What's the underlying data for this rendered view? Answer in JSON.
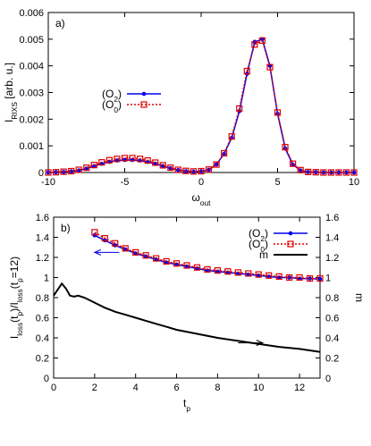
{
  "chart_data": [
    {
      "type": "line",
      "panel_label": "a)",
      "xlabel_base": "ω",
      "xlabel_sub": "out",
      "ylabel_base": "I",
      "ylabel_sub": "RIXS",
      "ylabel_suffix": " [arb. u.]",
      "xlim": [
        -10,
        10
      ],
      "ylim": [
        0,
        0.006
      ],
      "xticks": [
        "-10",
        "-5",
        "0",
        "5",
        "10"
      ],
      "yticks": [
        "0",
        "0.001",
        "0.002",
        "0.003",
        "0.004",
        "0.005",
        "0.006"
      ],
      "grid": false,
      "legend_position": "center-left",
      "series": [
        {
          "name": "(O2)",
          "name_base": "(O",
          "name_sub": "2",
          "name_tail": ")",
          "color": "#0000ee",
          "style": "solid",
          "marker": "circle",
          "x": [
            -10,
            -9.5,
            -9,
            -8.5,
            -8,
            -7.5,
            -7,
            -6.5,
            -6,
            -5.5,
            -5,
            -4.5,
            -4,
            -3.5,
            -3,
            -2.5,
            -2,
            -1.5,
            -1,
            -0.5,
            0,
            0.5,
            1,
            1.5,
            2,
            2.5,
            3,
            3.5,
            4,
            4.5,
            5,
            5.5,
            6,
            6.5,
            7,
            7.5,
            8,
            8.5,
            9,
            9.5,
            10
          ],
          "y": [
            0,
            1e-05,
            2e-05,
            4e-05,
            8e-05,
            0.00015,
            0.00024,
            0.00033,
            0.0004,
            0.00045,
            0.00047,
            0.00047,
            0.00045,
            0.0004,
            0.00033,
            0.00024,
            0.00016,
            9e-05,
            5e-05,
            3e-05,
            4e-05,
            0.0001,
            0.0003,
            0.0007,
            0.0013,
            0.0023,
            0.0037,
            0.0049,
            0.005,
            0.004,
            0.0022,
            0.0009,
            0.0003,
            8e-05,
            2e-05,
            1e-05,
            0,
            0,
            0,
            0,
            0
          ]
        },
        {
          "name": "(O0)",
          "name_base": "(O",
          "name_sub": "0",
          "name_tail": ")",
          "color": "#e00000",
          "style": "dotted",
          "marker": "square",
          "x": [
            -10,
            -9.5,
            -9,
            -8.5,
            -8,
            -7.5,
            -7,
            -6.5,
            -6,
            -5.5,
            -5,
            -4.5,
            -4,
            -3.5,
            -3,
            -2.5,
            -2,
            -1.5,
            -1,
            -0.5,
            0,
            0.5,
            1,
            1.5,
            2,
            2.5,
            3,
            3.5,
            4,
            4.5,
            5,
            5.5,
            6,
            6.5,
            7,
            7.5,
            8,
            8.5,
            9,
            9.5,
            10
          ],
          "y": [
            0,
            1e-05,
            3e-05,
            5e-05,
            0.0001,
            0.00018,
            0.00028,
            0.00038,
            0.00046,
            0.00051,
            0.00054,
            0.00054,
            0.00051,
            0.00045,
            0.00037,
            0.00027,
            0.00018,
            0.0001,
            6e-05,
            4e-05,
            5e-05,
            0.00011,
            0.0003,
            0.00072,
            0.00135,
            0.0024,
            0.0038,
            0.0048,
            0.00495,
            0.00395,
            0.00225,
            0.00095,
            0.00033,
            9e-05,
            2e-05,
            1e-05,
            0,
            0,
            0,
            0,
            0
          ]
        }
      ]
    },
    {
      "type": "line",
      "panel_label": "b)",
      "xlabel_base": "t",
      "xlabel_sub": "p",
      "ylabel_text": "I_loss(t_p)/I_loss(t_p=12)",
      "ylabel_parts": [
        {
          "t": "I",
          "sub": false
        },
        {
          "t": "loss",
          "sub": true
        },
        {
          "t": "(t",
          "sub": false
        },
        {
          "t": "p",
          "sub": true
        },
        {
          "t": ")/I",
          "sub": false
        },
        {
          "t": "loss",
          "sub": true
        },
        {
          "t": "(t",
          "sub": false
        },
        {
          "t": "p",
          "sub": true
        },
        {
          "t": "=12)",
          "sub": false
        }
      ],
      "y2label": "m",
      "xlim": [
        0,
        13
      ],
      "ylim": [
        0,
        1.6
      ],
      "y2lim": [
        0,
        1.6
      ],
      "xticks": [
        "0",
        "2",
        "4",
        "6",
        "8",
        "10",
        "12"
      ],
      "yticks": [
        "0",
        "0.2",
        "0.4",
        "0.6",
        "0.8",
        "1",
        "1.2",
        "1.4",
        "1.6"
      ],
      "y2ticks": [
        "0",
        "0.2",
        "0.4",
        "0.6",
        "0.8",
        "1",
        "1.2",
        "1.4",
        "1.6"
      ],
      "grid": false,
      "legend_position": "top-right",
      "annotations": [
        {
          "type": "arrow",
          "direction": "left",
          "from": [
            3.2,
            1.25
          ],
          "to": [
            2.0,
            1.25
          ],
          "axis": "left",
          "color": "#0000ee"
        },
        {
          "type": "arrow",
          "direction": "right",
          "from": [
            9.0,
            0.35
          ],
          "to": [
            10.2,
            0.35
          ],
          "axis": "right",
          "color": "#000000"
        }
      ],
      "series": [
        {
          "name": "(O2)",
          "name_base": "(O",
          "name_sub": "2",
          "name_tail": ")",
          "color": "#0000ee",
          "style": "solid",
          "marker": "circle",
          "axis": "left",
          "x": [
            2,
            2.5,
            3,
            3.5,
            4,
            4.5,
            5,
            5.5,
            6,
            6.5,
            7,
            7.5,
            8,
            8.5,
            9,
            9.5,
            10,
            10.5,
            11,
            11.5,
            12,
            12.5,
            13
          ],
          "y": [
            1.42,
            1.37,
            1.32,
            1.28,
            1.24,
            1.21,
            1.18,
            1.15,
            1.13,
            1.11,
            1.09,
            1.07,
            1.06,
            1.05,
            1.04,
            1.03,
            1.02,
            1.01,
            1.0,
            1.0,
            0.99,
            0.99,
            0.985
          ]
        },
        {
          "name": "(O0)",
          "name_base": "(O",
          "name_sub": "0",
          "name_tail": ")",
          "color": "#e00000",
          "style": "dotted",
          "marker": "square",
          "axis": "left",
          "x": [
            2,
            2.5,
            3,
            3.5,
            4,
            4.5,
            5,
            5.5,
            6,
            6.5,
            7,
            7.5,
            8,
            8.5,
            9,
            9.5,
            10,
            10.5,
            11,
            11.5,
            12,
            12.5,
            13
          ],
          "y": [
            1.45,
            1.39,
            1.34,
            1.29,
            1.25,
            1.22,
            1.19,
            1.16,
            1.14,
            1.12,
            1.1,
            1.08,
            1.07,
            1.06,
            1.05,
            1.04,
            1.03,
            1.02,
            1.01,
            1.0,
            1.0,
            0.99,
            0.99
          ]
        },
        {
          "name": "m",
          "name_base": "m",
          "name_sub": "",
          "name_tail": "",
          "color": "#000000",
          "style": "solid",
          "marker": "none",
          "axis": "right",
          "x": [
            0,
            0.2,
            0.4,
            0.6,
            0.8,
            1.0,
            1.2,
            1.5,
            1.8,
            2.0,
            2.5,
            3.0,
            3.5,
            4.0,
            4.5,
            5.0,
            5.5,
            6.0,
            7.0,
            8.0,
            9.0,
            10.0,
            11.0,
            12.0,
            13.0
          ],
          "y": [
            0.82,
            0.88,
            0.94,
            0.89,
            0.82,
            0.81,
            0.82,
            0.8,
            0.77,
            0.75,
            0.7,
            0.66,
            0.63,
            0.6,
            0.57,
            0.54,
            0.51,
            0.48,
            0.44,
            0.4,
            0.37,
            0.34,
            0.31,
            0.29,
            0.26
          ]
        }
      ]
    }
  ]
}
